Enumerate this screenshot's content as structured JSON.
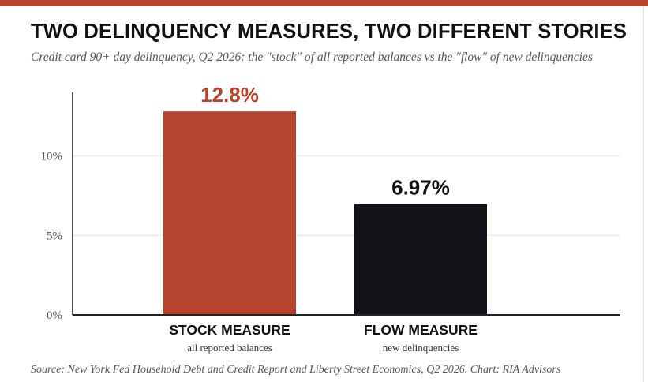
{
  "colors": {
    "accent": "#b5432e",
    "dark": "#111318",
    "grid": "#e6e6e6",
    "text": "#111111",
    "muted": "#555555"
  },
  "title": "TWO DELINQUENCY MEASURES, TWO DIFFERENT STORIES",
  "subtitle": "Credit card 90+ day delinquency, Q2 2026: the \"stock\" of all reported balances vs the \"flow\" of new delinquencies",
  "source": "Source: New York Fed Household Debt and Credit Report and Liberty Street Economics, Q2 2026. Chart: RIA Advisors",
  "chart_data": {
    "type": "bar",
    "title": "TWO DELINQUENCY MEASURES, TWO DIFFERENT STORIES",
    "categories": [
      "STOCK MEASURE",
      "FLOW MEASURE"
    ],
    "category_sublabels": [
      "all reported balances",
      "new delinquencies"
    ],
    "values": [
      12.8,
      6.97
    ],
    "data_labels": [
      "12.8%",
      "6.97%"
    ],
    "bar_colors": [
      "#b5432e",
      "#111318"
    ],
    "label_colors": [
      "#b5432e",
      "#111111"
    ],
    "yticks": [
      0,
      5,
      10
    ],
    "ytick_labels": [
      "0%",
      "5%",
      "10%"
    ],
    "ylim": [
      0,
      14
    ],
    "xlabel": "",
    "ylabel": "",
    "grid": true,
    "legend": "none"
  }
}
